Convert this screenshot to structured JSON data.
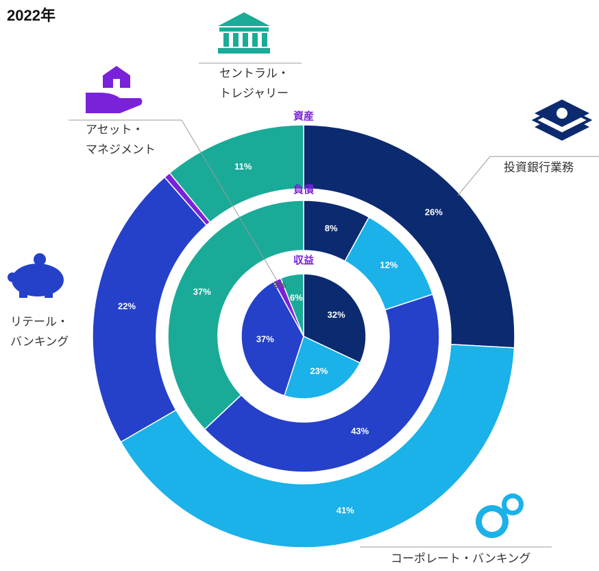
{
  "chart_data": {
    "type": "pie",
    "title": "2022年",
    "categories": [
      [
        "投資銀行業務"
      ],
      [
        "コーポレート・バンキング"
      ],
      [
        "リテール・",
        "バンキング"
      ],
      [
        "アセット・",
        "マネジメント"
      ],
      [
        "セントラル・",
        "トレジャリー"
      ]
    ],
    "colors": [
      "#0b2a6f",
      "#1bb1e9",
      "#2541c9",
      "#7a22d9",
      "#1aab98"
    ],
    "series": [
      {
        "name": "資産",
        "values": [
          26,
          41,
          22,
          0.5,
          11
        ],
        "value_labels": [
          "26%",
          "41%",
          "22%",
          null,
          "11%"
        ]
      },
      {
        "name": "負債",
        "values": [
          8,
          12,
          43,
          0,
          37
        ],
        "value_labels": [
          "8%",
          "12%",
          "43%",
          null,
          "37%"
        ]
      },
      {
        "name": "収益",
        "values": [
          32,
          23,
          37,
          2,
          6
        ],
        "value_labels": [
          "32%",
          "23%",
          "37%",
          "2%",
          "6%"
        ]
      }
    ]
  }
}
